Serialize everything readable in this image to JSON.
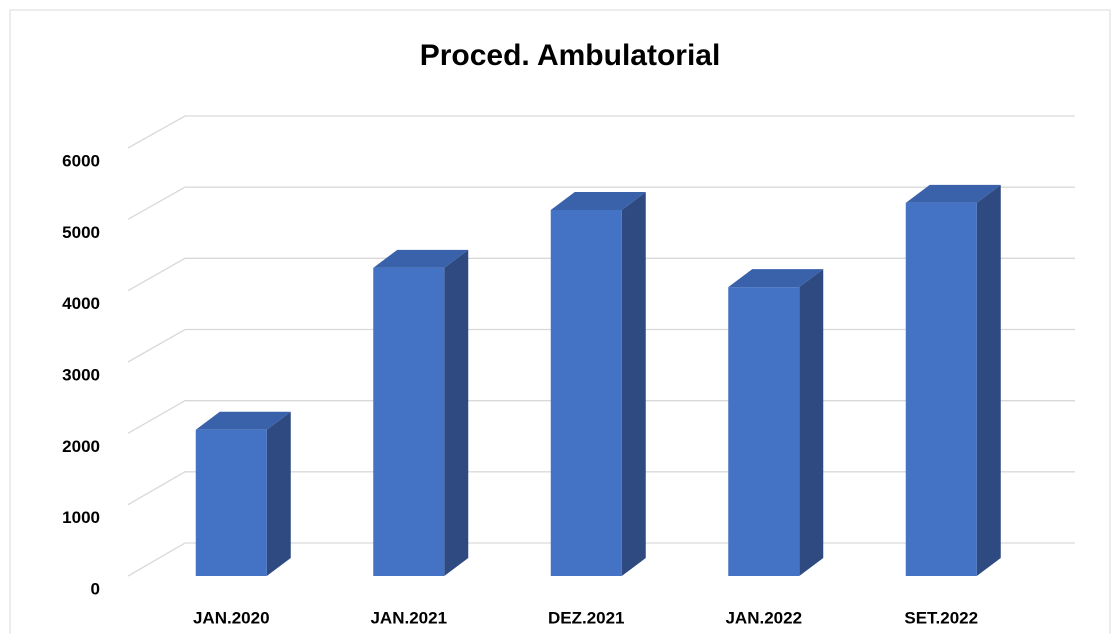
{
  "chart_data": {
    "type": "bar3d",
    "title": "Proced. Ambulatorial",
    "categories": [
      "JAN.2020",
      "JAN.2021",
      "DEZ.2021",
      "JAN.2022",
      "SET.2022"
    ],
    "values": [
      2050,
      4320,
      5130,
      4050,
      5230
    ],
    "color": "#4472c4",
    "ylim": [
      0,
      6000
    ],
    "yticks": [
      0,
      1000,
      2000,
      3000,
      4000,
      5000,
      6000
    ],
    "grid": true
  }
}
